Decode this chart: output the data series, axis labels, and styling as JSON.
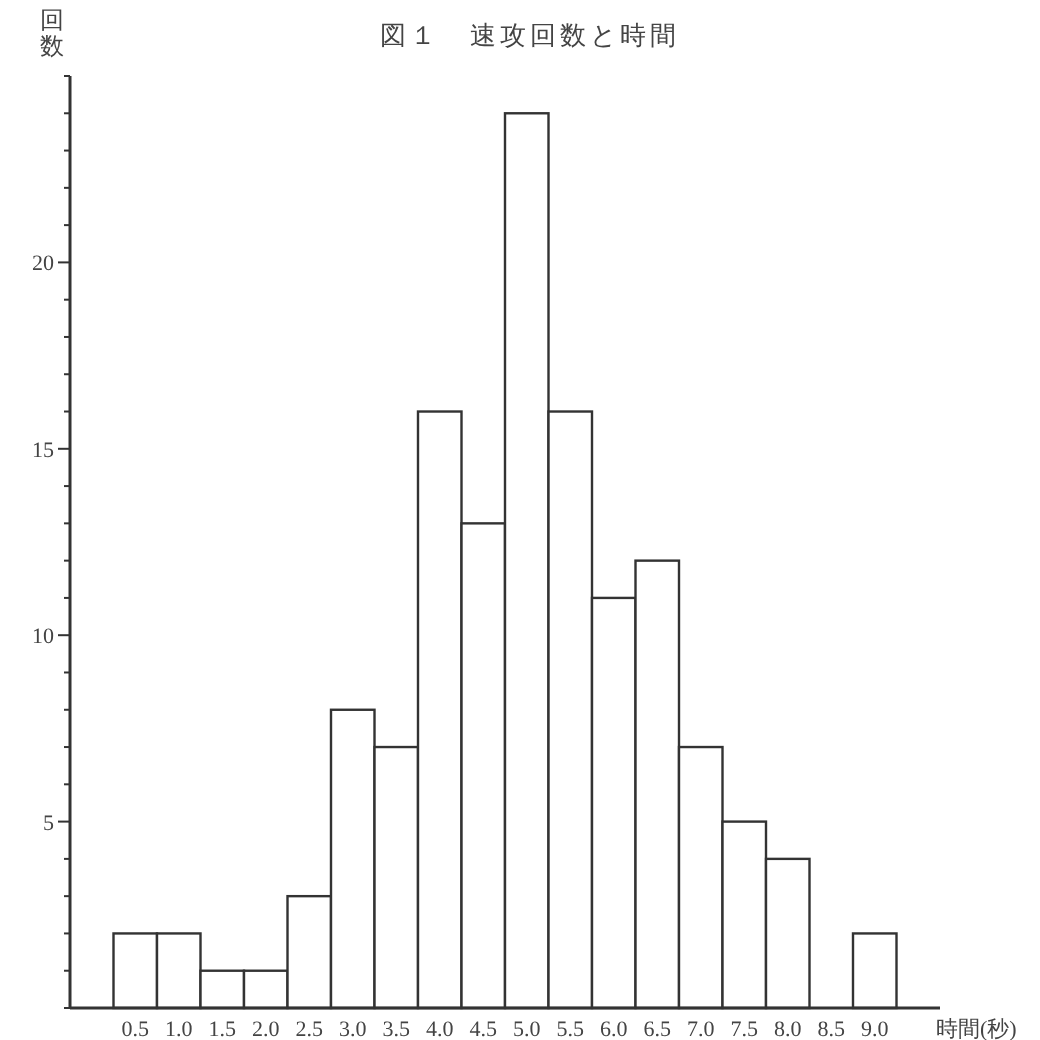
{
  "chart_data": {
    "type": "bar",
    "title": "図１　速攻回数と時間",
    "ylabel": "回数",
    "xlabel": "時間(秒)",
    "categories": [
      "0.5",
      "1.0",
      "1.5",
      "2.0",
      "2.5",
      "3.0",
      "3.5",
      "4.0",
      "4.5",
      "5.0",
      "5.5",
      "6.0",
      "6.5",
      "7.0",
      "7.5",
      "8.0",
      "8.5",
      "9.0"
    ],
    "values": [
      2,
      2,
      1,
      1,
      3,
      8,
      7,
      16,
      13,
      24,
      16,
      11,
      12,
      7,
      5,
      4,
      0,
      2
    ],
    "color": "#ffffff",
    "ylim": [
      0,
      25
    ],
    "yticks": [
      {
        "value": 0,
        "label": null
      },
      {
        "value": 1,
        "label": null
      },
      {
        "value": 2,
        "label": null
      },
      {
        "value": 3,
        "label": null
      },
      {
        "value": 4,
        "label": null
      },
      5,
      {
        "value": 6,
        "label": null
      },
      {
        "value": 7,
        "label": null
      },
      {
        "value": 8,
        "label": null
      },
      {
        "value": 9,
        "label": null
      },
      10,
      {
        "value": 11,
        "label": null
      },
      {
        "value": 12,
        "label": null
      },
      {
        "value": 13,
        "label": null
      },
      {
        "value": 14,
        "label": null
      },
      15,
      {
        "value": 16,
        "label": null
      },
      {
        "value": 17,
        "label": null
      },
      {
        "value": 18,
        "label": null
      },
      {
        "value": 19,
        "label": null
      },
      20,
      {
        "value": 21,
        "label": null
      },
      {
        "value": 22,
        "label": null
      },
      {
        "value": 23,
        "label": null
      },
      {
        "value": 24,
        "label": null
      },
      {
        "value": 25,
        "label": null
      }
    ],
    "grid": false
  }
}
